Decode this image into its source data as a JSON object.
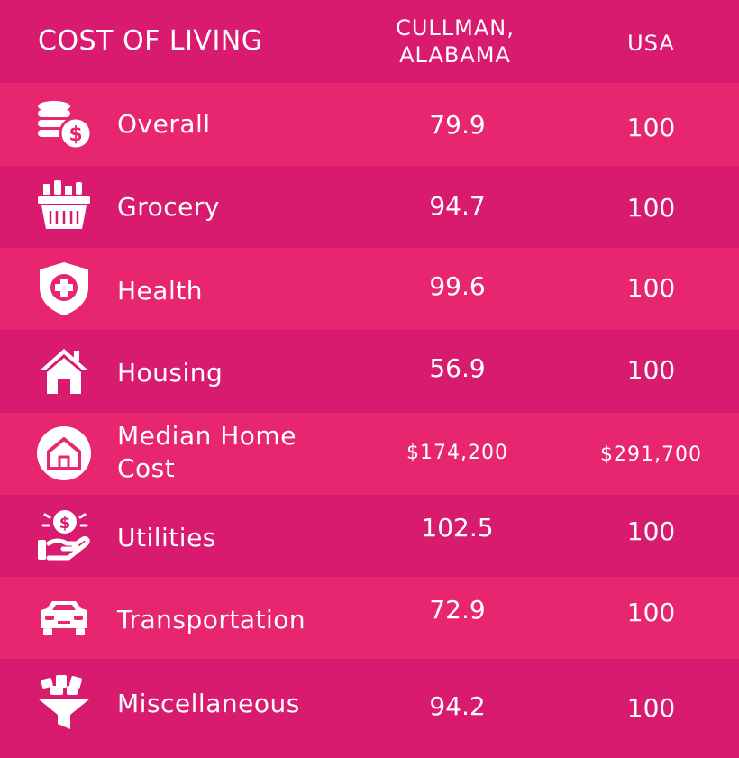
{
  "header": {
    "title": "COST OF LIVING",
    "col1_line1": "CULLMAN,",
    "col1_line2": "ALABAMA",
    "col2": "USA"
  },
  "rows": [
    {
      "label": "Overall",
      "icon": "coins-dollar-icon",
      "cullman": "79.9",
      "usa": "100"
    },
    {
      "label": "Grocery",
      "icon": "grocery-basket-icon",
      "cullman": "94.7",
      "usa": "100"
    },
    {
      "label": "Health",
      "icon": "health-shield-icon",
      "cullman": "99.6",
      "usa": "100"
    },
    {
      "label": "Housing",
      "icon": "house-icon",
      "cullman": "56.9",
      "usa": "100"
    },
    {
      "label_line1": "Median Home",
      "label_line2": "Cost",
      "icon": "home-circle-icon",
      "cullman": "$174,200",
      "usa": "$291,700"
    },
    {
      "label": "Utilities",
      "icon": "hand-dollar-icon",
      "cullman": "102.5",
      "usa": "100"
    },
    {
      "label": "Transportation",
      "icon": "car-icon",
      "cullman": "72.9",
      "usa": "100"
    },
    {
      "label": "Miscellaneous",
      "icon": "funnel-items-icon",
      "cullman": "94.2",
      "usa": "100"
    }
  ],
  "colors": {
    "background_dark": "#d81b6e",
    "background_light": "#e8256f",
    "text": "#ffffff"
  }
}
